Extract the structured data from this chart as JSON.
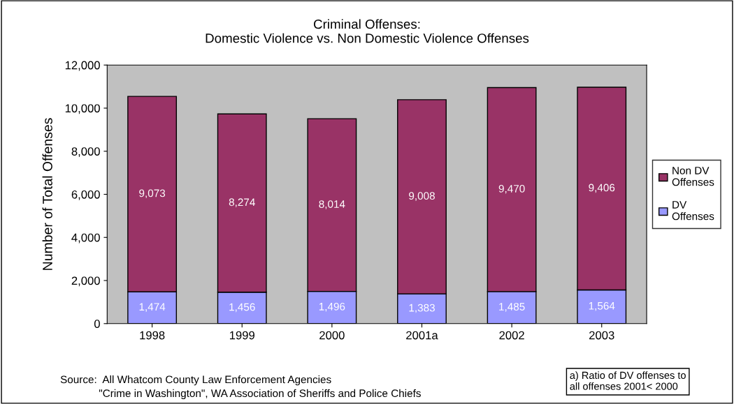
{
  "chart_data": {
    "type": "bar",
    "stacked": true,
    "title": "Criminal Offenses:\nDomestic Violence vs. Non Domestic Violence Offenses",
    "ylabel": "Number of Total Offenses",
    "categories": [
      "1998",
      "1999",
      "2000",
      "2001a",
      "2002",
      "2003"
    ],
    "series": [
      {
        "name": "DV\nOffenses",
        "color": "#9999ff",
        "values": [
          1474,
          1456,
          1496,
          1383,
          1485,
          1564
        ],
        "value_labels": [
          "1,474",
          "1,456",
          "1,496",
          "1,383",
          "1,485",
          "1,564"
        ]
      },
      {
        "name": "Non DV\nOffenses",
        "color": "#993366",
        "values": [
          9073,
          8274,
          8014,
          9008,
          9470,
          9406
        ],
        "value_labels": [
          "9,073",
          "8,274",
          "8,014",
          "9,008",
          "9,470",
          "9,406"
        ]
      }
    ],
    "ylim": [
      0,
      12000
    ],
    "yticks": [
      {
        "value": 0,
        "label": "0"
      },
      {
        "value": 2000,
        "label": "2,000"
      },
      {
        "value": 4000,
        "label": "4,000"
      },
      {
        "value": 6000,
        "label": "6,000"
      },
      {
        "value": 8000,
        "label": "8,000"
      },
      {
        "value": 10000,
        "label": "10,000"
      },
      {
        "value": 12000,
        "label": "12,000"
      }
    ],
    "grid": false,
    "legend": "right",
    "annotations": [
      "Source:  All Whatcom County Law Enforcement Agencies\n             \"Crime in Washington\", WA Association of Sheriffs and Police Chiefs",
      "a) Ratio of DV offenses to\nall offenses 2001< 2000"
    ]
  }
}
